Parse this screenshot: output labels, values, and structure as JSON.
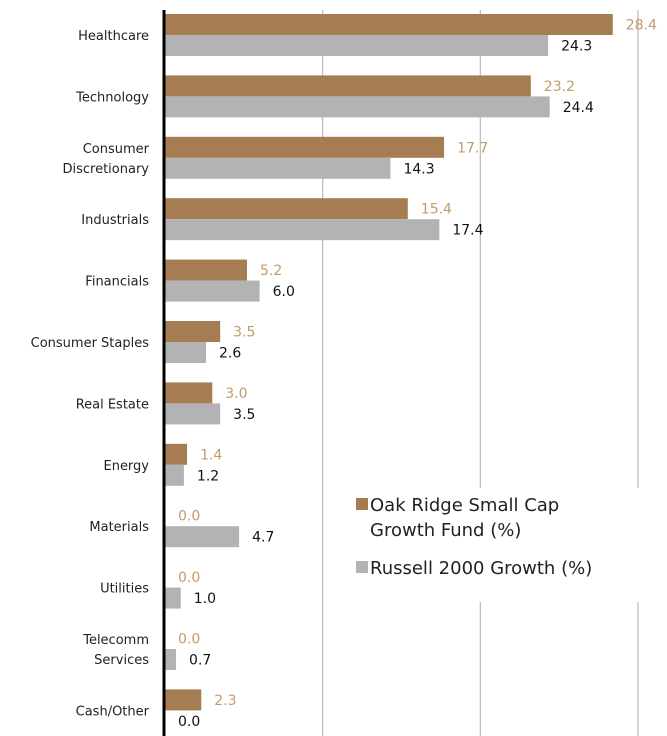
{
  "chart_data": {
    "type": "bar",
    "orientation": "horizontal",
    "categories": [
      [
        "Healthcare"
      ],
      [
        "Technology"
      ],
      [
        "Consumer",
        "Discretionary"
      ],
      [
        "Industrials"
      ],
      [
        "Financials"
      ],
      [
        "Consumer Staples"
      ],
      [
        "Real Estate"
      ],
      [
        "Energy"
      ],
      [
        "Materials"
      ],
      [
        "Utilities"
      ],
      [
        "Telecomm",
        "Services"
      ],
      [
        "Cash/Other"
      ]
    ],
    "series": [
      {
        "name": "Oak Ridge Small Cap Growth Fund (%)",
        "legend_lines": [
          "Oak Ridge Small Cap",
          "Growth Fund (%)"
        ],
        "color": "#a67c52",
        "label_color": "#c39a6b",
        "values": [
          28.4,
          23.2,
          17.7,
          15.4,
          5.2,
          3.5,
          3.0,
          1.4,
          0.0,
          0.0,
          0.0,
          2.3
        ],
        "labels": [
          "28.4",
          "23.2",
          "17.7",
          "15.4",
          "5.2",
          "3.5",
          "3.0",
          "1.4",
          "0.0",
          "0.0",
          "0.0",
          "2.3"
        ]
      },
      {
        "name": "Russell 2000 Growth (%)",
        "legend_lines": [
          "Russell 2000 Growth (%)"
        ],
        "color": "#b3b3b6",
        "label_color": "#111111",
        "values": [
          24.3,
          24.4,
          14.3,
          17.4,
          6.0,
          2.6,
          3.5,
          1.2,
          4.7,
          1.0,
          0.7,
          0.0
        ],
        "labels": [
          "24.3",
          "24.4",
          "14.3",
          "17.4",
          "6.0",
          "2.6",
          "3.5",
          "1.2",
          "4.7",
          "1.0",
          "0.7",
          "0.0"
        ]
      }
    ],
    "xlim": [
      0,
      30
    ],
    "gridlines_x": [
      10,
      20,
      30
    ],
    "grid": true,
    "legend_position": "right-middle",
    "title": "",
    "xlabel": "",
    "ylabel": ""
  }
}
